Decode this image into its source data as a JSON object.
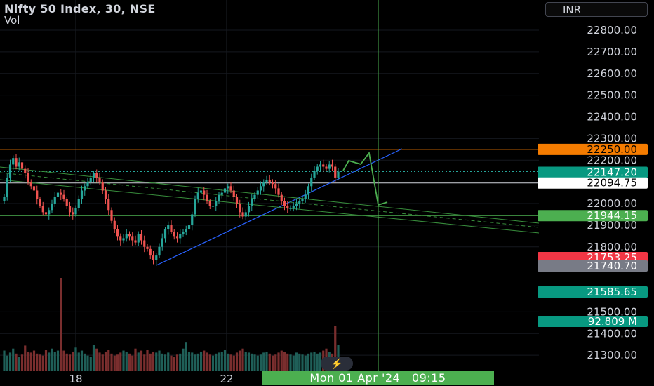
{
  "header": {
    "title": "Nifty 50 Index, 30, NSE",
    "vol_label": "Vol"
  },
  "currency_button": "INR",
  "cursor_time_label": "Mon 01 Apr '24   09:15",
  "bolt_icon": "lightning-icon",
  "colors": {
    "up": "#26a69a",
    "down": "#ef5350",
    "trendline": "#2962ff",
    "channel": "#388e3c",
    "projection": "#4caf50",
    "resistance": "#f57c00",
    "support": "#4caf50",
    "cursor": "#4caf50"
  },
  "chart_data": {
    "type": "candlestick",
    "y_axis": {
      "ticks": [
        "22800.00",
        "22700.00",
        "22600.00",
        "22500.00",
        "22400.00",
        "22300.00",
        "22200.00",
        "22000.00",
        "21900.00",
        "21800.00",
        "21500.00",
        "21400.00",
        "21300.00"
      ],
      "range": [
        21250,
        22880
      ]
    },
    "x_axis": {
      "ticks": [
        "18",
        "22"
      ]
    },
    "price_labels": [
      {
        "value": "22250.00",
        "style": "orange"
      },
      {
        "value": "22147.20",
        "style": "teal"
      },
      {
        "value": "22094.75",
        "style": "white"
      },
      {
        "value": "21944.15",
        "style": "green"
      },
      {
        "value": "21753.25",
        "style": "red"
      },
      {
        "value": "21740.70",
        "style": "gray"
      },
      {
        "value": "21585.65",
        "style": "teal"
      },
      {
        "value": "92.809 M",
        "style": "teal"
      }
    ],
    "horizontal_levels": {
      "resistance": 22250,
      "support": 21944.15,
      "reference": 22094.75
    },
    "close_series": [
      22030,
      22120,
      22180,
      22210,
      22170,
      22190,
      22160,
      22140,
      22100,
      22080,
      22060,
      22020,
      21990,
      21960,
      21950,
      21970,
      22000,
      22030,
      22050,
      22040,
      22020,
      21990,
      21960,
      21950,
      21980,
      22020,
      22060,
      22080,
      22100,
      22120,
      22140,
      22120,
      22100,
      22060,
      22020,
      21970,
      21920,
      21880,
      21850,
      21830,
      21840,
      21860,
      21850,
      21830,
      21820,
      21860,
      21830,
      21800,
      21790,
      21760,
      21740,
      21760,
      21800,
      21840,
      21880,
      21900,
      21870,
      21850,
      21840,
      21860,
      21870,
      21880,
      21900,
      21950,
      22020,
      22050,
      22060,
      22040,
      22010,
      21990,
      21990,
      22010,
      22040,
      22050,
      22070,
      22080,
      22060,
      22030,
      22000,
      21960,
      21940,
      21960,
      21990,
      22020,
      22040,
      22060,
      22080,
      22100,
      22110,
      22100,
      22090,
      22070,
      22040,
      22010,
      21990,
      21980,
      21980,
      21990,
      22000,
      22010,
      22020,
      22040,
      22080,
      22120,
      22150,
      22170,
      22180,
      22170,
      22160,
      22180,
      22170,
      22120,
      22147.2
    ],
    "volume_million": [
      20,
      15,
      18,
      22,
      17,
      14,
      16,
      25,
      19,
      18,
      20,
      17,
      16,
      15,
      21,
      18,
      22,
      19,
      20,
      92.8,
      20,
      17,
      16,
      19,
      23,
      18,
      20,
      17,
      15,
      14,
      26,
      22,
      18,
      16,
      19,
      21,
      17,
      15,
      16,
      18,
      20,
      19,
      17,
      15,
      22,
      18,
      20,
      16,
      21,
      17,
      19,
      18,
      20,
      17,
      16,
      18,
      15,
      14,
      16,
      17,
      22,
      28,
      19,
      18,
      16,
      17,
      19,
      20,
      18,
      16,
      15,
      17,
      18,
      19,
      21,
      17,
      16,
      15,
      18,
      20,
      22,
      19,
      18,
      17,
      16,
      15,
      16,
      18,
      19,
      17,
      15,
      16,
      18,
      20,
      19,
      17,
      16,
      15,
      18,
      17,
      16,
      15,
      17,
      18,
      19,
      17,
      18,
      20,
      22,
      19,
      17,
      45,
      26
    ]
  }
}
